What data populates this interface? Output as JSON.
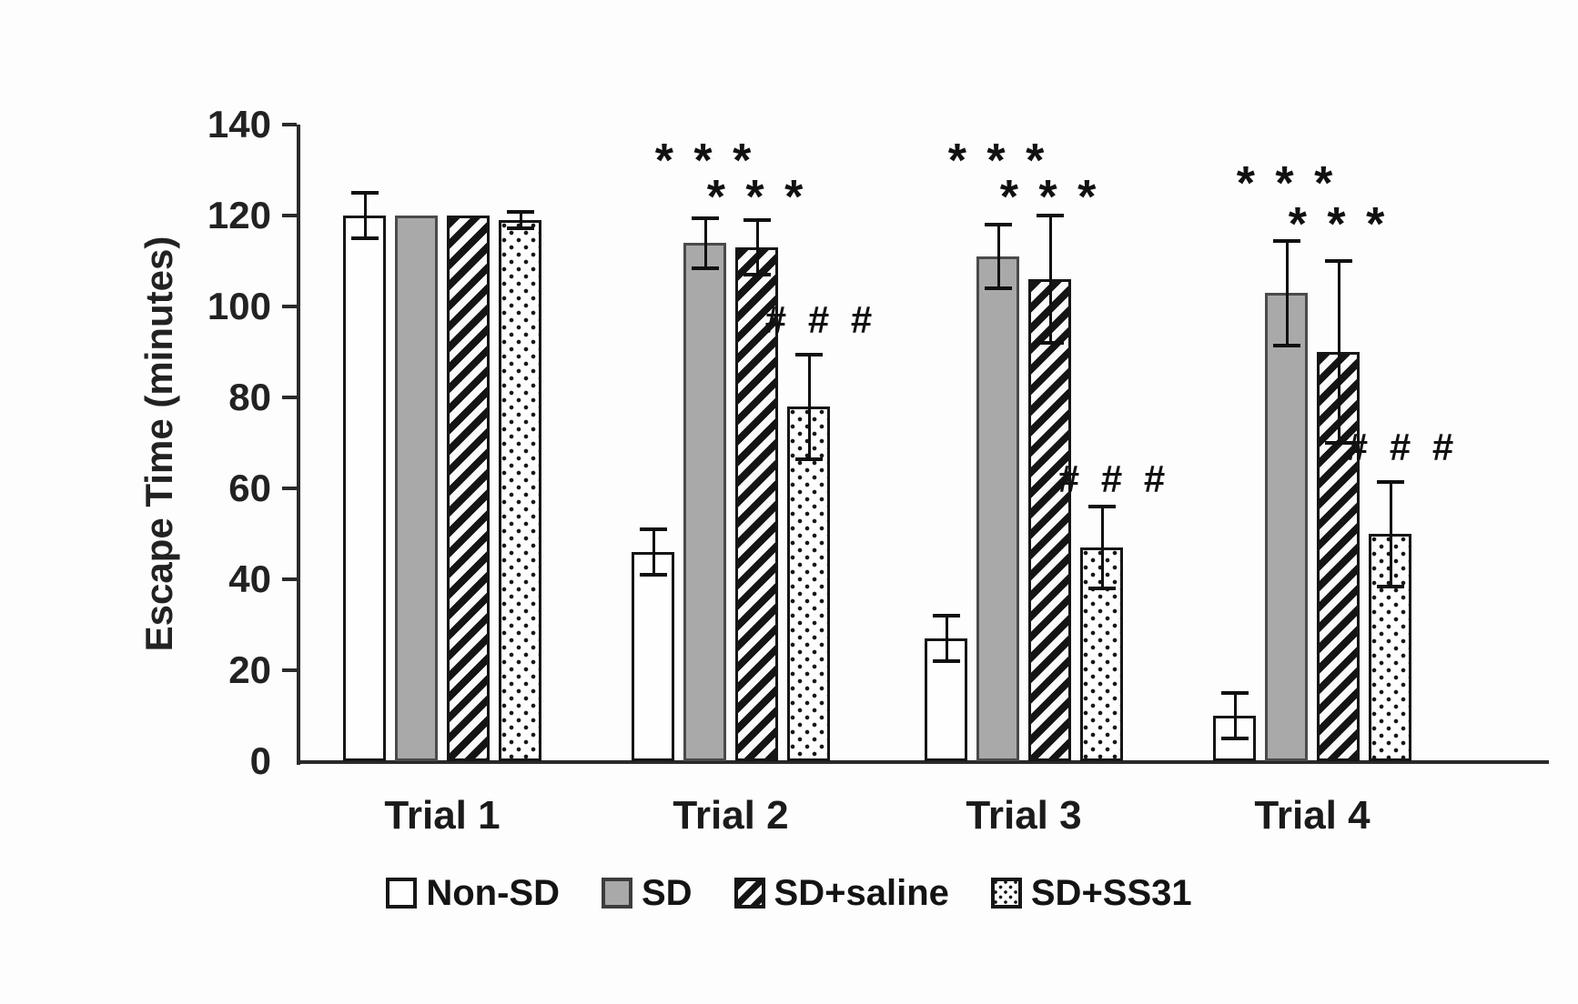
{
  "chart_data": {
    "type": "bar",
    "title": "",
    "xlabel": "",
    "ylabel": "Escape Time (minutes)",
    "ylim": [
      0,
      140
    ],
    "yticks": [
      0,
      20,
      40,
      60,
      80,
      100,
      120,
      140
    ],
    "grid": false,
    "legend_position": "bottom",
    "categories": [
      "Trial 1",
      "Trial 2",
      "Trial 3",
      "Trial 4"
    ],
    "series": [
      {
        "name": "Non-SD",
        "pattern": "plain",
        "values": [
          120,
          46,
          27,
          10
        ],
        "errors": [
          5,
          5,
          5,
          5
        ]
      },
      {
        "name": "SD",
        "pattern": "solid-gray",
        "values": [
          120,
          114,
          111,
          103
        ],
        "errors": [
          0,
          5.5,
          7,
          11.5
        ]
      },
      {
        "name": "SD+saline",
        "pattern": "diagonal-stripes",
        "values": [
          120,
          113,
          106,
          90
        ],
        "errors": [
          0,
          6,
          14,
          20
        ]
      },
      {
        "name": "SD+SS31",
        "pattern": "dots",
        "values": [
          119,
          78,
          47,
          50
        ],
        "errors": [
          1.8,
          11.5,
          9,
          11.5
        ]
      }
    ],
    "annotations": [
      {
        "category": "Trial 2",
        "series": "SD",
        "text": "* * *",
        "y": 132
      },
      {
        "category": "Trial 2",
        "series": "SD+saline",
        "text": "* * *",
        "y": 124
      },
      {
        "category": "Trial 2",
        "series": "SD+SS31",
        "text": "# # #",
        "y": 97
      },
      {
        "category": "Trial 3",
        "series": "SD",
        "text": "* * *",
        "y": 132
      },
      {
        "category": "Trial 3",
        "series": "SD+saline",
        "text": "* * *",
        "y": 124
      },
      {
        "category": "Trial 3",
        "series": "SD+SS31",
        "text": "# # #",
        "y": 62
      },
      {
        "category": "Trial 4",
        "series": "SD",
        "text": "* * *",
        "y": 127
      },
      {
        "category": "Trial 4",
        "series": "SD+saline",
        "text": "* * *",
        "y": 118
      },
      {
        "category": "Trial 4",
        "series": "SD+SS31",
        "text": "# # #",
        "y": 69
      }
    ],
    "legend": [
      "Non-SD",
      "SD",
      "SD+saline",
      "SD+SS31"
    ],
    "colors": {
      "ink": "#161616",
      "bar_gray": "#a9a9a9",
      "background": "#fdfdfd"
    }
  }
}
